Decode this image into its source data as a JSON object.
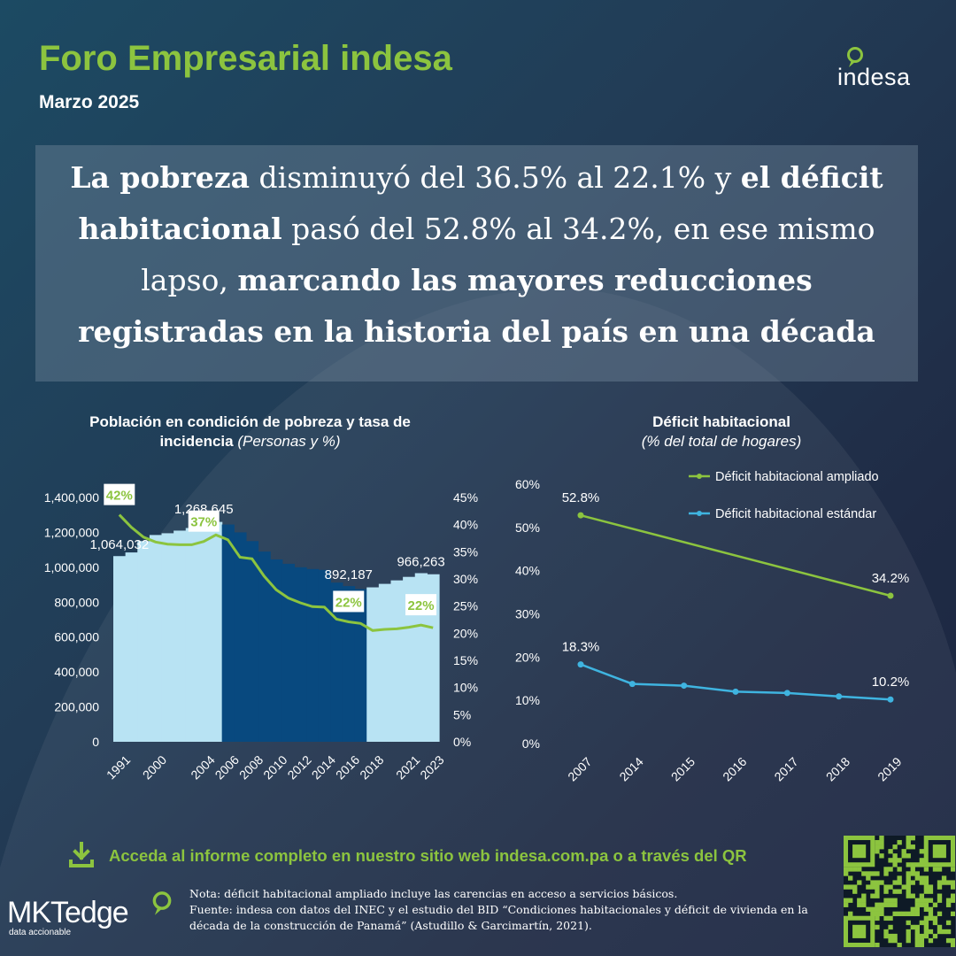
{
  "header": {
    "title": "Foro Empresarial indesa",
    "date": "Marzo 2025",
    "brand_logo": "indesa",
    "accent_color": "#8cc43f"
  },
  "headline": {
    "b1": "La pobreza",
    "t1": " disminuyó del 36.5% al 22.1% y ",
    "b2": "el déficit habitacional",
    "t2": " pasó del 52.8% al 34.2%, en ese mismo lapso, ",
    "b3": "marcando las mayores reducciones registradas en la historia del país en una década"
  },
  "chart_left_title": {
    "main": "Población en condición de pobreza y tasa de incidencia",
    "sub": "(Personas y %)"
  },
  "chart_right_title": {
    "main": "Déficit habitacional",
    "sub": "(% del total de hogares)"
  },
  "chart_data": [
    {
      "type": "bar",
      "title": "Población en condición de pobreza y tasa de incidencia (Personas y %)",
      "x_tick_labels": [
        "1991",
        "2000",
        "2004",
        "2006",
        "2008",
        "2010",
        "2012",
        "2014",
        "2016",
        "2018",
        "2021",
        "2023"
      ],
      "x": [
        1991,
        1997,
        1999,
        2000,
        2001,
        2002,
        2003,
        2004,
        2005,
        2006,
        2007,
        2008,
        2009,
        2010,
        2011,
        2012,
        2013,
        2014,
        2015,
        2016,
        2017,
        2018,
        2019,
        2020,
        2021,
        2022,
        2023
      ],
      "series": [
        {
          "values": [
            1064032,
            1085000,
            1150000,
            1185000,
            1195000,
            1210000,
            1225000,
            1268645,
            1260000,
            1245000,
            1200000,
            1150000,
            1090000,
            1045000,
            1020000,
            1000000,
            990000,
            985000,
            912000,
            892187,
            875000,
            885000,
            905000,
            925000,
            945000,
            966263,
            960000
          ],
          "colors": [
            "#b8e3f3",
            "#b8e3f3",
            "#b8e3f3",
            "#b8e3f3",
            "#b8e3f3",
            "#b8e3f3",
            "#b8e3f3",
            "#b8e3f3",
            "#b8e3f3",
            "#08497f",
            "#08497f",
            "#08497f",
            "#08497f",
            "#08497f",
            "#08497f",
            "#08497f",
            "#08497f",
            "#08497f",
            "#08497f",
            "#08497f",
            "#08497f",
            "#b8e3f3",
            "#b8e3f3",
            "#b8e3f3",
            "#b8e3f3",
            "#b8e3f3",
            "#b8e3f3"
          ]
        },
        {
          "axis": "right",
          "type": "line",
          "color": "#8cc43f",
          "values": [
            41.8,
            39.5,
            37.7,
            36.8,
            36.4,
            36.3,
            36.3,
            36.9,
            38.1,
            37.2,
            34.0,
            33.7,
            30.5,
            28.0,
            26.5,
            25.6,
            24.9,
            24.8,
            22.6,
            22.1,
            21.8,
            20.5,
            20.7,
            20.8,
            21.1,
            21.5,
            21.0
          ]
        }
      ],
      "data_labels": {
        "bars": [
          {
            "x": 1991,
            "text": "1,064,032"
          },
          {
            "x": 2004,
            "text": "1,268,645"
          },
          {
            "x": 2016,
            "text": "892,187"
          },
          {
            "x": 2022,
            "text": "966,263"
          }
        ],
        "line": [
          {
            "x": 1991,
            "text": "42%"
          },
          {
            "x": 2004,
            "text": "37%"
          },
          {
            "x": 2016,
            "text": "22%"
          },
          {
            "x": 2022,
            "text": "22%"
          }
        ]
      },
      "y_left_ticks": [
        "0",
        "200,000",
        "400,000",
        "600,000",
        "800,000",
        "1,000,000",
        "1,200,000",
        "1,400,000"
      ],
      "y_left_lim": [
        0,
        1400000
      ],
      "y_right_ticks": [
        "0%",
        "5%",
        "10%",
        "15%",
        "20%",
        "25%",
        "30%",
        "35%",
        "40%",
        "45%"
      ],
      "y_right_lim": [
        0,
        45
      ],
      "grid": false
    },
    {
      "type": "line",
      "title": "Déficit habitacional (% del total de hogares)",
      "categories": [
        "2007",
        "2014",
        "2015",
        "2016",
        "2017",
        "2018",
        "2019"
      ],
      "series": [
        {
          "name": "Déficit habitacional ampliado",
          "color": "#8cc43f",
          "x": [
            "2007",
            "2019"
          ],
          "values": [
            52.8,
            34.2
          ],
          "labels": [
            "52.8%",
            "34.2%"
          ]
        },
        {
          "name": "Déficit habitacional estándar",
          "color": "#3fb4e0",
          "x": [
            "2007",
            "2014",
            "2015",
            "2016",
            "2017",
            "2018",
            "2019"
          ],
          "values": [
            18.3,
            13.8,
            13.4,
            12.0,
            11.7,
            10.9,
            10.2
          ],
          "labels": [
            "18.3%",
            "",
            "",
            "",
            "",
            "",
            "10.2%"
          ]
        }
      ],
      "y_ticks": [
        "0%",
        "10%",
        "20%",
        "30%",
        "40%",
        "50%",
        "60%"
      ],
      "ylim": [
        0,
        60
      ],
      "legend": "top-right",
      "grid": false
    }
  ],
  "footer": {
    "cta": "Acceda al informe completo en nuestro sitio web indesa.com.pa o a través del QR",
    "note1": "Nota: déficit habitacional ampliado incluye las carencias en acceso a servicios básicos.",
    "note2": "Fuente: indesa con datos del INEC y el estudio del BID “Condiciones habitacionales y déficit de vivienda en la década de la construcción de Panamá” (Astudillo & Garcimartín, 2021).",
    "mkt_word": "MKTedge",
    "mkt_tagline": "data accionable",
    "download_icon": "download-icon",
    "qr_icon": "qr-code-icon"
  }
}
